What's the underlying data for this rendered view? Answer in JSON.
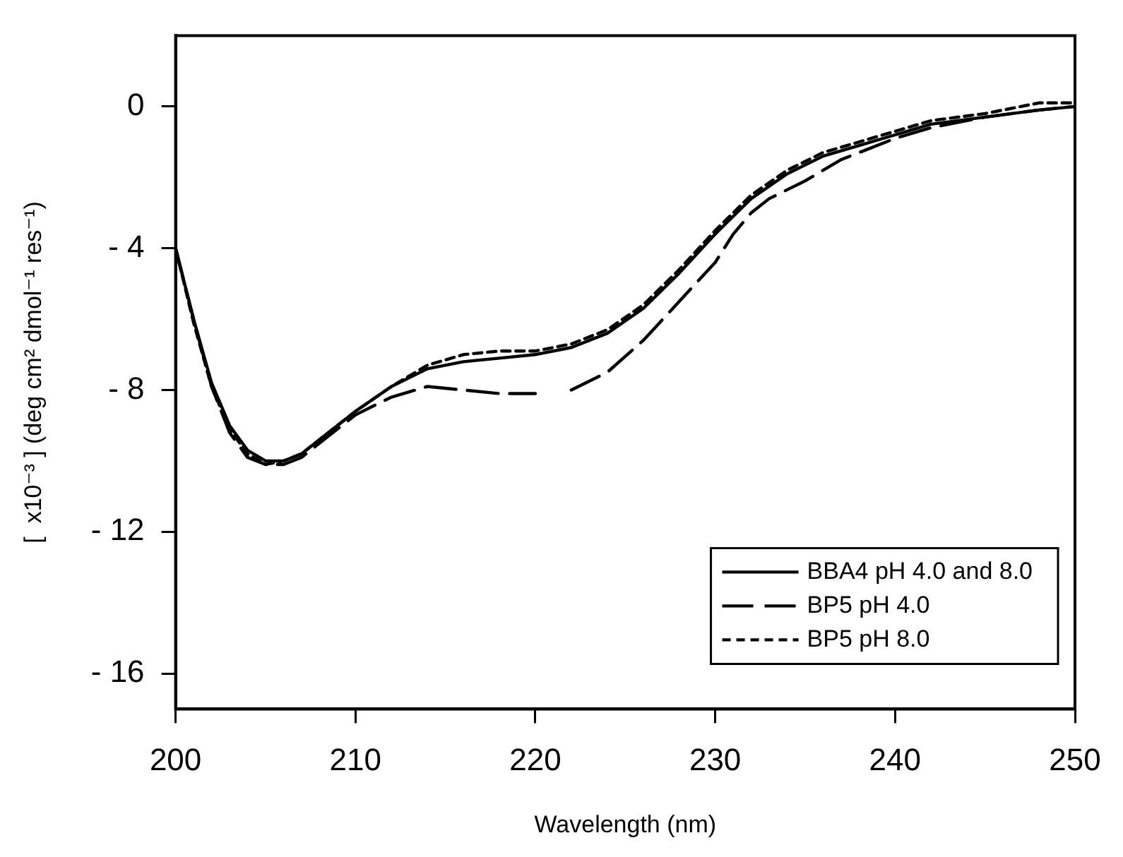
{
  "chart_data": {
    "type": "line",
    "xlabel": "Wavelength (nm)",
    "ylabel": "[  x10⁻³ ] (deg cm² dmol⁻¹ res⁻¹)",
    "xlim": [
      200,
      250
    ],
    "xticks": [
      200,
      210,
      220,
      230,
      240,
      250
    ],
    "ylim": [
      -17,
      2
    ],
    "yticks": [
      0,
      -4,
      -8,
      -12,
      -16
    ],
    "grid": false,
    "legend": "bottom right",
    "marker": "none",
    "series": [
      {
        "name": "BBA4 pH 4.0 and 8.0",
        "color": "#000000",
        "line_style": "solid",
        "x": [
          200,
          201,
          202,
          203,
          204,
          205,
          206,
          207,
          208,
          210,
          212,
          214,
          216,
          218,
          220,
          222,
          224,
          226,
          228,
          230,
          232,
          234,
          236,
          238,
          240,
          242,
          245,
          248,
          250
        ],
        "values": [
          -4.0,
          -6.0,
          -7.8,
          -9.0,
          -9.7,
          -10.0,
          -10.0,
          -9.8,
          -9.4,
          -8.6,
          -7.9,
          -7.4,
          -7.2,
          -7.1,
          -7.0,
          -6.8,
          -6.4,
          -5.7,
          -4.7,
          -3.6,
          -2.6,
          -1.9,
          -1.4,
          -1.1,
          -0.8,
          -0.5,
          -0.3,
          -0.1,
          0.0
        ]
      },
      {
        "name": "BP5 pH 4.0",
        "color": "#000000",
        "line_style": "dashed",
        "x": [
          200,
          201,
          202,
          203,
          204,
          205,
          206,
          207,
          208,
          210,
          212,
          214,
          216,
          218,
          220,
          221,
          222,
          224,
          226,
          228,
          230,
          231,
          232,
          233,
          235,
          237,
          240,
          242,
          245,
          248,
          250
        ],
        "values": [
          -4.0,
          -6.0,
          -7.9,
          -9.2,
          -9.9,
          -10.1,
          -10.1,
          -9.9,
          -9.5,
          -8.7,
          -8.2,
          -7.9,
          -8.0,
          -8.1,
          -8.1,
          null,
          -8.0,
          -7.5,
          -6.6,
          -5.5,
          -4.4,
          -3.6,
          -3.0,
          -2.6,
          -2.1,
          -1.5,
          -0.9,
          -0.6,
          -0.3,
          -0.1,
          0.0
        ]
      },
      {
        "name": "BP5 pH 8.0",
        "color": "#000000",
        "line_style": "dotted",
        "x": [
          200,
          201,
          202,
          203,
          204,
          205,
          206,
          207,
          208,
          210,
          212,
          214,
          216,
          218,
          220,
          222,
          224,
          226,
          228,
          230,
          232,
          234,
          236,
          238,
          240,
          242,
          245,
          248,
          250
        ],
        "values": [
          -4.0,
          -6.1,
          -7.9,
          -9.1,
          -9.8,
          -10.1,
          -10.0,
          -9.8,
          -9.4,
          -8.6,
          -7.9,
          -7.3,
          -7.0,
          -6.9,
          -6.9,
          -6.7,
          -6.3,
          -5.6,
          -4.6,
          -3.5,
          -2.5,
          -1.8,
          -1.3,
          -1.0,
          -0.7,
          -0.4,
          -0.2,
          0.1,
          0.1
        ]
      }
    ]
  }
}
